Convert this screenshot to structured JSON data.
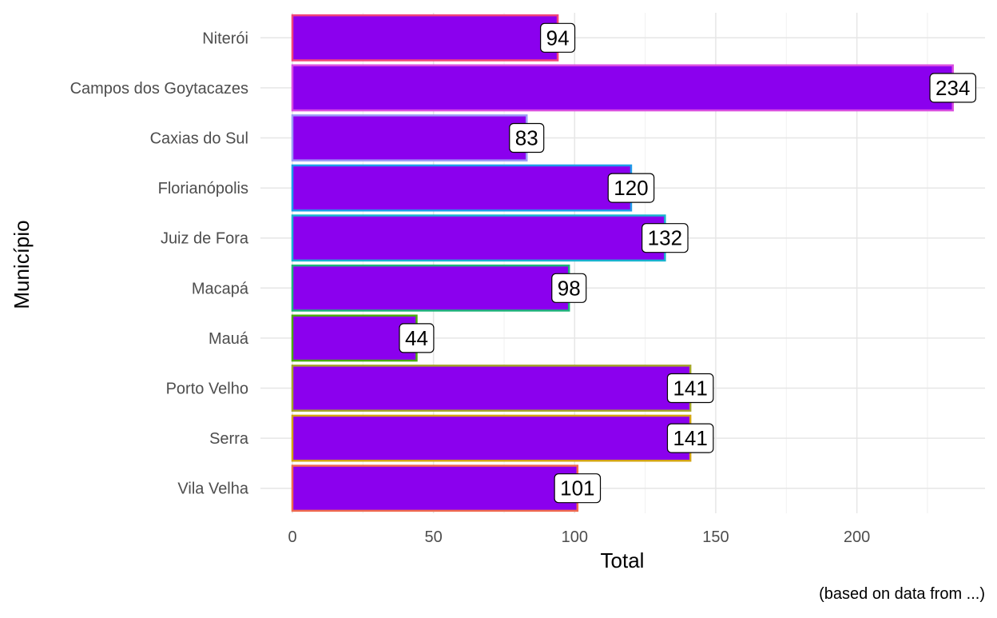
{
  "chart_data": {
    "type": "bar",
    "orientation": "horizontal",
    "categories": [
      "Niterói",
      "Campos dos Goytacazes",
      "Caxias do Sul",
      "Florianópolis",
      "Juiz de Fora",
      "Macapá",
      "Mauá",
      "Porto Velho",
      "Serra",
      "Vila Velha"
    ],
    "values": [
      94,
      234,
      83,
      120,
      132,
      98,
      44,
      141,
      141,
      101
    ],
    "data_labels": [
      "94",
      "234",
      "83",
      "120",
      "132",
      "98",
      "44",
      "141",
      "141",
      "101"
    ],
    "fill_color": "#8B00EE",
    "outline_colors": [
      "#F2457B",
      "#D94EE0",
      "#9B9BF5",
      "#1E9BE8",
      "#1AB3CF",
      "#1EB37A",
      "#4BAA12",
      "#A5A52A",
      "#D4A314",
      "#F06B4F"
    ],
    "xlabel": "Total",
    "ylabel": "Município",
    "caption": "(based on data from ...)",
    "xlim": [
      0,
      245
    ],
    "x_ticks": [
      0,
      50,
      100,
      150,
      200
    ],
    "x_tick_labels": [
      "0",
      "50",
      "100",
      "150",
      "200"
    ],
    "grid": true,
    "theme": "minimal"
  }
}
